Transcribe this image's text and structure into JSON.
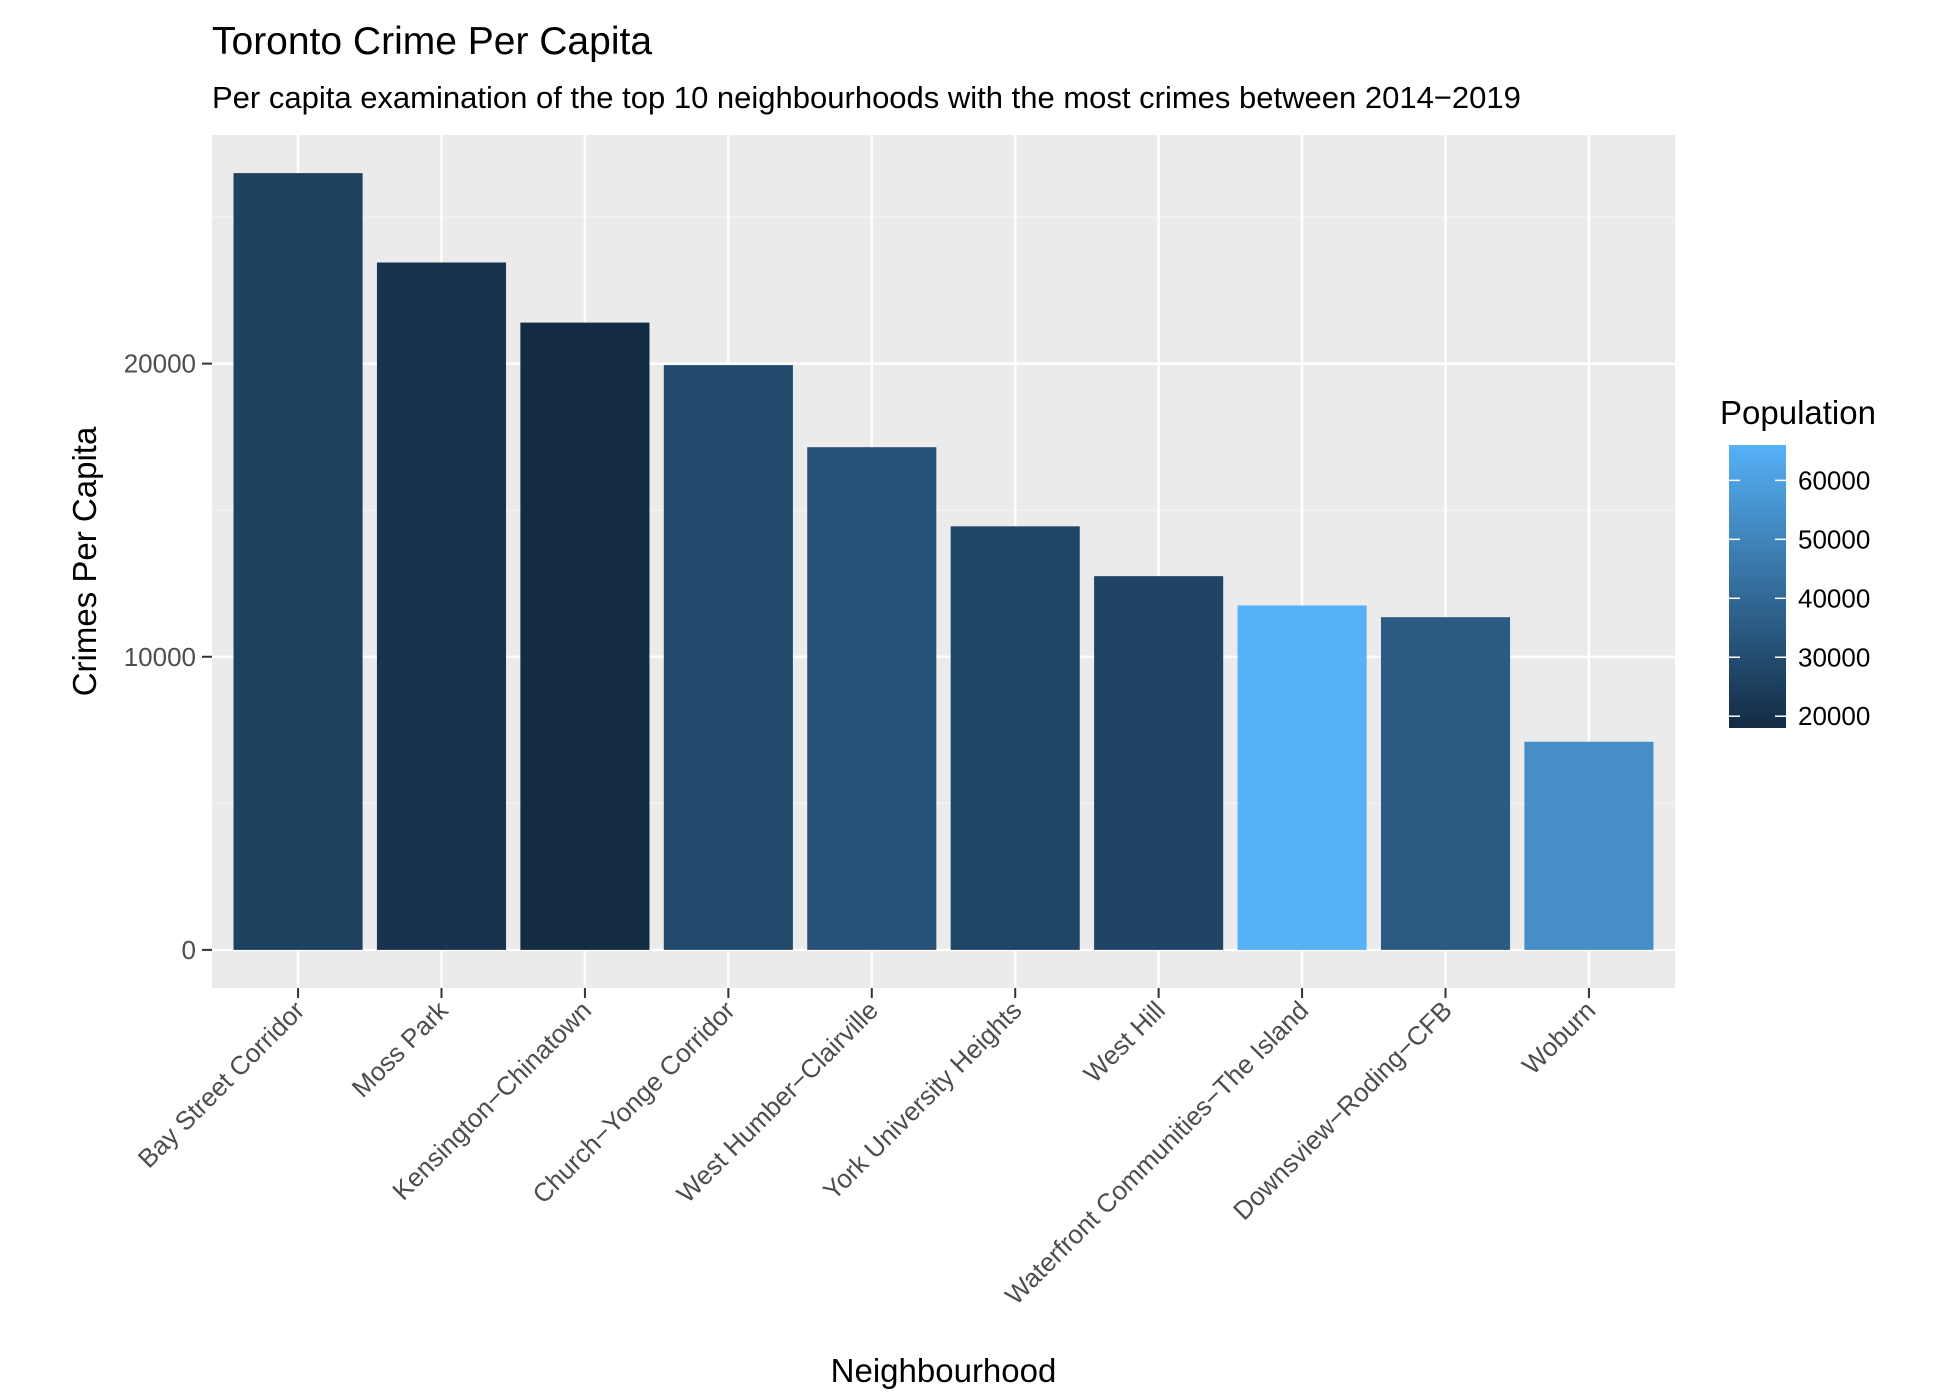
{
  "chart_data": {
    "type": "bar",
    "title": "Toronto Crime Per Capita",
    "subtitle": "Per capita examination of the top 10 neighbourhoods with the most crimes between 2014−2019",
    "xlabel": "Neighbourhood",
    "ylabel": "Crimes Per Capita",
    "categories": [
      "Bay Street Corridor",
      "Moss Park",
      "Kensington−Chinatown",
      "Church−Yonge Corridor",
      "West Humber−Clairville",
      "York University Heights",
      "West Hill",
      "Waterfront Communities−The Island",
      "Downsview−Roding−CFB",
      "Woburn"
    ],
    "values": [
      26500,
      23450,
      21400,
      19950,
      17150,
      14450,
      12750,
      11750,
      11350,
      7100
    ],
    "population": [
      25800,
      20700,
      17800,
      29000,
      32000,
      27500,
      27000,
      65900,
      35000,
      53500
    ],
    "ylim": [
      -1300,
      27800
    ],
    "yticks": [
      0,
      10000,
      20000
    ],
    "ytick_labels": [
      "0",
      "10000",
      "20000"
    ],
    "grid": true,
    "legend": {
      "title": "Population",
      "placement": "right",
      "min": 18000,
      "max": 66000,
      "breaks": [
        20000,
        30000,
        40000,
        50000,
        60000
      ],
      "break_labels": [
        "20000",
        "30000",
        "40000",
        "50000",
        "60000"
      ],
      "low_color": "#132B43",
      "high_color": "#56B1F7"
    },
    "colors": {
      "panel_bg": "#EBEBEB",
      "grid_major": "#FFFFFF",
      "grid_minor": "#F5F5F5",
      "tick": "#333333"
    }
  }
}
